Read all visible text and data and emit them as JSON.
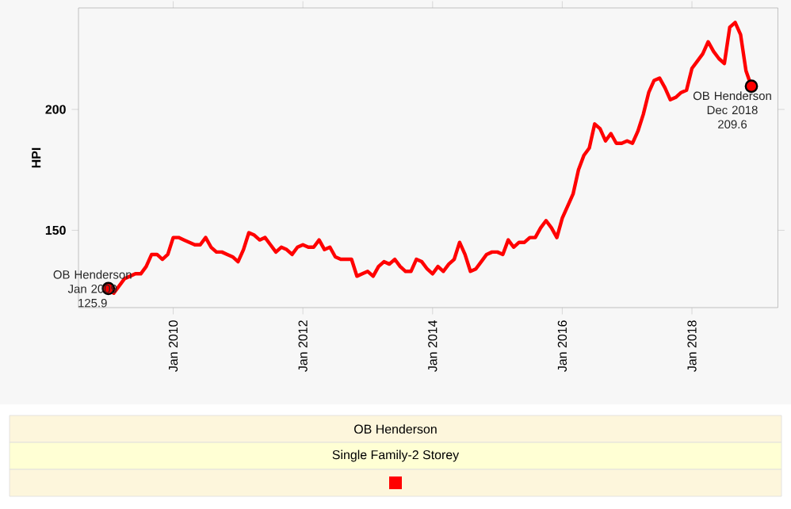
{
  "chart_data": {
    "type": "line",
    "ylabel": "HPI",
    "legend_title": "OB Henderson",
    "legend": "bottom",
    "line_style": "solid",
    "x": [
      "2009-01",
      "2009-02",
      "2009-03",
      "2009-04",
      "2009-05",
      "2009-06",
      "2009-07",
      "2009-08",
      "2009-09",
      "2009-10",
      "2009-11",
      "2009-12",
      "2010-01",
      "2010-02",
      "2010-03",
      "2010-04",
      "2010-05",
      "2010-06",
      "2010-07",
      "2010-08",
      "2010-09",
      "2010-10",
      "2010-11",
      "2010-12",
      "2011-01",
      "2011-02",
      "2011-03",
      "2011-04",
      "2011-05",
      "2011-06",
      "2011-07",
      "2011-08",
      "2011-09",
      "2011-10",
      "2011-11",
      "2011-12",
      "2012-01",
      "2012-02",
      "2012-03",
      "2012-04",
      "2012-05",
      "2012-06",
      "2012-07",
      "2012-08",
      "2012-09",
      "2012-10",
      "2012-11",
      "2012-12",
      "2013-01",
      "2013-02",
      "2013-03",
      "2013-04",
      "2013-05",
      "2013-06",
      "2013-07",
      "2013-08",
      "2013-09",
      "2013-10",
      "2013-11",
      "2013-12",
      "2014-01",
      "2014-02",
      "2014-03",
      "2014-04",
      "2014-05",
      "2014-06",
      "2014-07",
      "2014-08",
      "2014-09",
      "2014-10",
      "2014-11",
      "2014-12",
      "2015-01",
      "2015-02",
      "2015-03",
      "2015-04",
      "2015-05",
      "2015-06",
      "2015-07",
      "2015-08",
      "2015-09",
      "2015-10",
      "2015-11",
      "2015-12",
      "2016-01",
      "2016-02",
      "2016-03",
      "2016-04",
      "2016-05",
      "2016-06",
      "2016-07",
      "2016-08",
      "2016-09",
      "2016-10",
      "2016-11",
      "2016-12",
      "2017-01",
      "2017-02",
      "2017-03",
      "2017-04",
      "2017-05",
      "2017-06",
      "2017-07",
      "2017-08",
      "2017-09",
      "2017-10",
      "2017-11",
      "2017-12",
      "2018-01",
      "2018-02",
      "2018-03",
      "2018-04",
      "2018-05",
      "2018-06",
      "2018-07",
      "2018-08",
      "2018-09",
      "2018-10",
      "2018-11",
      "2018-12"
    ],
    "series": [
      {
        "name": "Single Family-2 Storey",
        "color": "#ff0000",
        "values": [
          125.9,
          124,
          127,
          130,
          131,
          132,
          132,
          135,
          140,
          140,
          138,
          140,
          147,
          147,
          146,
          145,
          144,
          144,
          147,
          143,
          141,
          141,
          140,
          139,
          137,
          142,
          149,
          148,
          146,
          147,
          144,
          141,
          143,
          142,
          140,
          143,
          144,
          143,
          143,
          146,
          142,
          143,
          139,
          138,
          138,
          138,
          131,
          132,
          133,
          131,
          135,
          137,
          136,
          138,
          135,
          133,
          133,
          138,
          137,
          134,
          132,
          135,
          133,
          136,
          138,
          145,
          140,
          133,
          134,
          137,
          140,
          141,
          141,
          140,
          146,
          143,
          145,
          145,
          147,
          147,
          151,
          154,
          151,
          147,
          155,
          160,
          165,
          175,
          181,
          184,
          194,
          192,
          187,
          190,
          186,
          186,
          187,
          186,
          191,
          198,
          207,
          212,
          213,
          209,
          204,
          205,
          207,
          208,
          217,
          220,
          223,
          228,
          224,
          221,
          219,
          234,
          236,
          231,
          216,
          209.6
        ]
      }
    ],
    "xlim": [
      "2008-07-15",
      "2019-04-28"
    ],
    "xticks": [
      {
        "value": "2010-01",
        "label": "Jan 2010"
      },
      {
        "value": "2012-01",
        "label": "Jan 2012"
      },
      {
        "value": "2014-01",
        "label": "Jan 2014"
      },
      {
        "value": "2016-01",
        "label": "Jan 2016"
      },
      {
        "value": "2018-01",
        "label": "Jan 2018"
      }
    ],
    "ylim": [
      118,
      242
    ],
    "yticks": [
      150,
      200
    ],
    "annotations": [
      {
        "text": "OB Henderson Jan 2009 125.9",
        "x": "2009-01",
        "y": 125.9
      },
      {
        "text": "OB Henderson Dec 2018 209.6",
        "x": "2018-12",
        "y": 209.6
      }
    ]
  }
}
